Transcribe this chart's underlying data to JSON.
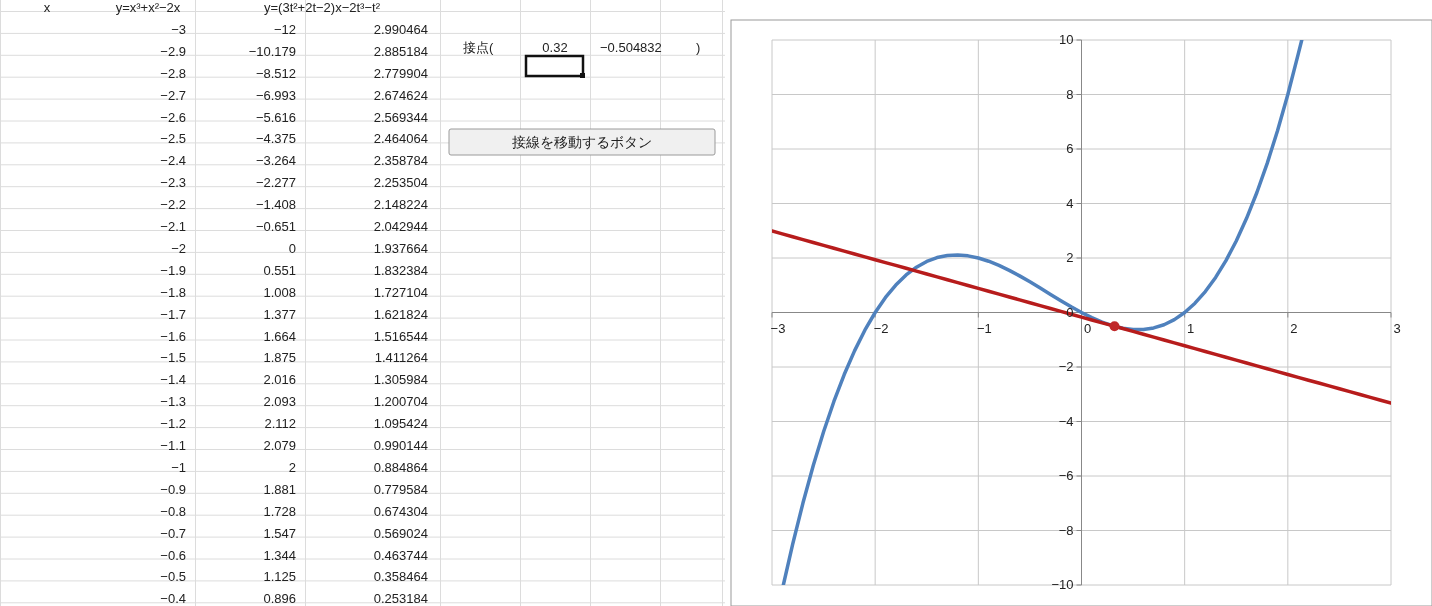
{
  "chart_data": {
    "type": "line",
    "x": [
      -3,
      -2.9,
      -2.8,
      -2.7,
      -2.6,
      -2.5,
      -2.4,
      -2.3,
      -2.2,
      -2.1,
      -2,
      -1.9,
      -1.8,
      -1.7,
      -1.6,
      -1.5,
      -1.4,
      -1.3,
      -1.2,
      -1.1,
      -1,
      -0.9,
      -0.8,
      -0.7,
      -0.6,
      -0.5,
      -0.4,
      -0.3,
      -0.2,
      -0.1,
      0,
      0.1,
      0.2,
      0.3,
      0.4,
      0.5,
      0.6,
      0.7,
      0.8,
      0.9,
      1,
      1.1,
      1.2,
      1.3,
      1.4,
      1.5,
      1.6,
      1.7,
      1.8,
      1.9,
      2,
      2.1,
      2.2,
      2.3,
      2.4,
      2.5,
      2.6,
      2.7,
      2.8,
      2.9,
      3
    ],
    "series": [
      {
        "color": "#4f81bd",
        "x": [
          -2.89,
          -2.8,
          -2.7,
          -2.6,
          -2.5,
          -2.4,
          -2.3,
          -2.2,
          -2.1,
          -2,
          -1.9,
          -1.8,
          -1.7,
          -1.6,
          -1.5,
          -1.4,
          -1.3,
          -1.2,
          -1.1,
          -1,
          -0.9,
          -0.8,
          -0.7,
          -0.6,
          -0.5,
          -0.4,
          -0.3,
          -0.2,
          -0.1,
          0,
          0.1,
          0.2,
          0.3,
          0.4,
          0.5,
          0.6,
          0.7,
          0.8,
          0.9,
          1,
          1.1,
          1.2,
          1.3,
          1.4,
          1.5,
          1.6,
          1.7,
          1.8,
          1.9,
          2,
          2.1,
          2.135
        ],
        "values": [
          -10,
          -8.512,
          -6.993,
          -5.616,
          -4.375,
          -3.264,
          -2.277,
          -1.408,
          -0.651,
          0,
          0.551,
          1.008,
          1.377,
          1.664,
          1.875,
          2.016,
          2.093,
          2.112,
          2.079,
          2,
          1.881,
          1.728,
          1.547,
          1.344,
          1.125,
          0.896,
          0.663,
          0.432,
          0.209,
          0,
          -0.189,
          -0.352,
          -0.483,
          -0.576,
          -0.625,
          -0.624,
          -0.567,
          -0.448,
          -0.261,
          0,
          0.341,
          0.768,
          1.287,
          1.904,
          2.625,
          3.456,
          4.403,
          5.472,
          6.669,
          8,
          9.471,
          10
        ]
      },
      {
        "color": "#b71c1c",
        "values": [
          2.990464,
          2.885184,
          2.779904,
          2.674624,
          2.569344,
          2.464064,
          2.358784,
          2.253504,
          2.148224,
          2.042944,
          1.937664,
          1.832384,
          1.727104,
          1.621824,
          1.516544,
          1.411264,
          1.305984,
          1.200704,
          1.095424,
          0.990144,
          0.884864,
          0.779584,
          0.674304,
          0.569024,
          0.463744,
          0.358464,
          0.253184,
          0.147904,
          0.042624,
          -0.062656,
          -0.167936,
          -0.273216,
          -0.378496,
          -0.483776,
          -0.589056,
          -0.694336,
          -0.799616,
          -0.904896,
          -1.010176,
          -1.115456,
          -1.220736,
          -1.326016,
          -1.431296,
          -1.536576,
          -1.641856,
          -1.747136,
          -1.852416,
          -1.957696,
          -2.062976,
          -2.168256,
          -2.273536,
          -2.378816,
          -2.484096,
          -2.589376,
          -2.694656,
          -2.799936,
          -2.905216,
          -3.010496,
          -3.115776,
          -3.221056,
          -3.326336
        ]
      },
      {
        "type": "scatter",
        "color": "#c0282a",
        "marker": "circle",
        "x": [
          0.32
        ],
        "values": [
          -0.504832
        ]
      }
    ],
    "xlim": [
      -3,
      3
    ],
    "xticks": [
      -3,
      -2,
      -1,
      0,
      1,
      2,
      3
    ],
    "ylim": [
      -10,
      10
    ],
    "yticks": [
      -10,
      -8,
      -6,
      -4,
      -2,
      0,
      2,
      4,
      6,
      8,
      10
    ],
    "grid": true,
    "annotations": [
      "x",
      "y=x³+x²−2x",
      "y=(3t²+2t−2)x−2t³−t²",
      "−3",
      "−12",
      "2.990464",
      "−2.9",
      "−10.179",
      "2.885184",
      "−2.8",
      "−8.512",
      "2.779904",
      "−2.7",
      "−6.993",
      "2.674624",
      "−2.6",
      "−5.616",
      "2.569344",
      "−2.5",
      "−4.375",
      "2.464064",
      "−2.4",
      "−3.264",
      "2.358784",
      "−2.3",
      "−2.277",
      "2.253504",
      "−2.2",
      "−1.408",
      "2.148224",
      "−2.1",
      "−0.651",
      "2.042944",
      "−2",
      "0",
      "1.937664",
      "−1.9",
      "0.551",
      "1.832384",
      "−1.8",
      "1.008",
      "1.727104",
      "−1.7",
      "1.377",
      "1.621824",
      "−1.6",
      "1.664",
      "1.516544",
      "−1.5",
      "1.875",
      "1.411264",
      "−1.4",
      "2.016",
      "1.305984",
      "−1.3",
      "2.093",
      "1.200704",
      "−1.2",
      "2.112",
      "1.095424",
      "−1.1",
      "2.079",
      "0.990144",
      "−1",
      "2",
      "0.884864",
      "−0.9",
      "1.881",
      "0.779584",
      "−0.8",
      "1.728",
      "0.674304",
      "−0.7",
      "1.547",
      "0.569024",
      "−0.6",
      "1.344",
      "0.463744",
      "−0.5",
      "1.125",
      "0.358464",
      "−0.4",
      "0.896",
      "0.253184",
      "接点(",
      "0.32",
      "−0.504832",
      ")",
      "接線を移動するボタン"
    ]
  }
}
